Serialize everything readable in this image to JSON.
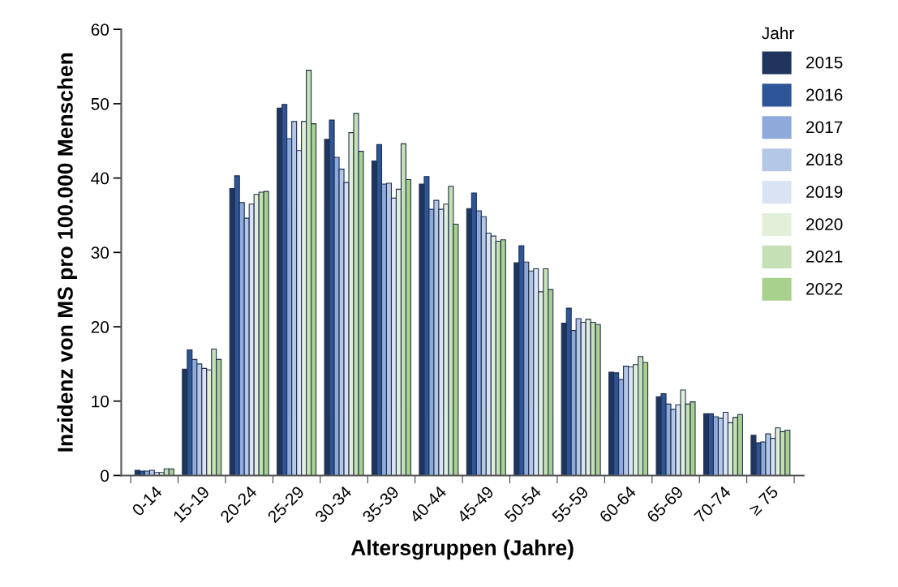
{
  "chart_data": {
    "type": "bar",
    "xlabel": "Altersgruppen (Jahre)",
    "ylabel": "Inzidenz von MS pro 100.000 Menschen",
    "legend_title": "Jahr",
    "legend": "top right",
    "grid": false,
    "categories": [
      "0-14",
      "15-19",
      "20-24",
      "25-29",
      "30-34",
      "35-39",
      "40-44",
      "45-49",
      "50-54",
      "55-59",
      "60-64",
      "65-69",
      "70-74",
      "≥ 75"
    ],
    "ylim": [
      0,
      60
    ],
    "yticks": [
      0,
      10,
      20,
      30,
      40,
      50,
      60
    ],
    "series": [
      {
        "name": "2015",
        "color": "#1f355e",
        "values": [
          0.7,
          14.3,
          38.6,
          49.4,
          45.2,
          42.3,
          39.2,
          35.9,
          28.6,
          20.5,
          13.9,
          10.6,
          8.3,
          5.4
        ]
      },
      {
        "name": "2016",
        "color": "#2e5597",
        "values": [
          0.6,
          16.9,
          40.3,
          49.9,
          47.8,
          44.5,
          40.2,
          38.0,
          30.9,
          22.5,
          13.8,
          11.0,
          8.3,
          4.4
        ]
      },
      {
        "name": "2017",
        "color": "#8eaadb",
        "values": [
          0.6,
          15.6,
          36.7,
          45.3,
          42.8,
          39.2,
          35.8,
          35.6,
          28.7,
          19.5,
          12.9,
          9.6,
          7.9,
          4.5
        ]
      },
      {
        "name": "2018",
        "color": "#b4c7e7",
        "values": [
          0.7,
          15.0,
          34.6,
          47.6,
          41.2,
          39.3,
          37.0,
          34.8,
          27.5,
          21.1,
          14.7,
          8.9,
          7.7,
          5.6
        ]
      },
      {
        "name": "2019",
        "color": "#dae3f3",
        "values": [
          0.4,
          14.4,
          36.5,
          43.7,
          39.4,
          37.3,
          35.8,
          32.6,
          27.8,
          20.6,
          14.6,
          9.5,
          8.5,
          5.0
        ]
      },
      {
        "name": "2020",
        "color": "#e2f0d9",
        "values": [
          0.4,
          14.2,
          37.8,
          47.6,
          46.1,
          38.5,
          36.5,
          32.2,
          24.7,
          21.0,
          14.9,
          11.5,
          7.1,
          6.4
        ]
      },
      {
        "name": "2021",
        "color": "#c5e0b4",
        "values": [
          0.9,
          17.0,
          38.1,
          54.5,
          48.7,
          44.6,
          38.9,
          31.5,
          27.8,
          20.6,
          16.0,
          9.6,
          7.8,
          5.9
        ]
      },
      {
        "name": "2022",
        "color": "#a9d18e",
        "values": [
          0.9,
          15.6,
          38.2,
          47.3,
          43.6,
          39.8,
          33.8,
          31.7,
          25.0,
          20.3,
          15.2,
          9.9,
          8.2,
          6.1
        ]
      }
    ]
  }
}
